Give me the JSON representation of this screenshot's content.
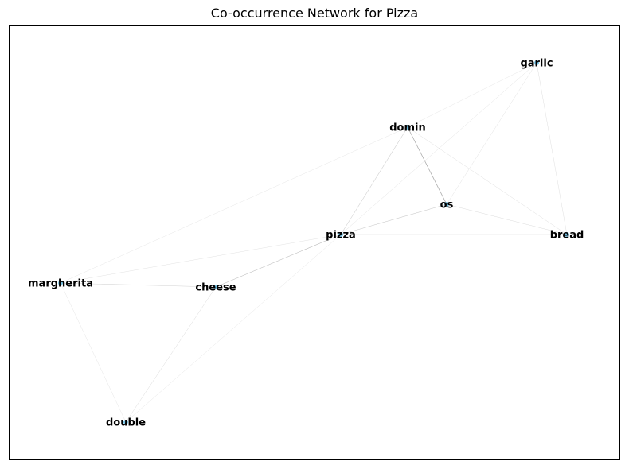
{
  "title": "Co-occurrence Network for Pizza",
  "colors": {
    "node": "#1f9fd6",
    "edge": "#9a9a9a",
    "frame": "#000000",
    "label": "#000000"
  },
  "graph": {
    "nodes": [
      {
        "id": "garlic",
        "label": "garlic"
      },
      {
        "id": "domin",
        "label": "domin"
      },
      {
        "id": "os",
        "label": "os"
      },
      {
        "id": "pizza",
        "label": "pizza"
      },
      {
        "id": "bread",
        "label": "bread"
      },
      {
        "id": "margherita",
        "label": "margherita"
      },
      {
        "id": "cheese",
        "label": "cheese"
      },
      {
        "id": "double",
        "label": "double"
      }
    ],
    "edges": [
      {
        "source": "domin",
        "target": "os",
        "weight": 0.6
      },
      {
        "source": "domin",
        "target": "pizza",
        "weight": 0.25
      },
      {
        "source": "domin",
        "target": "garlic",
        "weight": 0.08
      },
      {
        "source": "domin",
        "target": "bread",
        "weight": 0.12
      },
      {
        "source": "domin",
        "target": "margherita",
        "weight": 0.07
      },
      {
        "source": "garlic",
        "target": "os",
        "weight": 0.1
      },
      {
        "source": "garlic",
        "target": "bread",
        "weight": 0.12
      },
      {
        "source": "garlic",
        "target": "pizza",
        "weight": 0.1
      },
      {
        "source": "os",
        "target": "pizza",
        "weight": 0.3
      },
      {
        "source": "os",
        "target": "bread",
        "weight": 0.15
      },
      {
        "source": "pizza",
        "target": "bread",
        "weight": 0.15
      },
      {
        "source": "pizza",
        "target": "cheese",
        "weight": 0.4
      },
      {
        "source": "pizza",
        "target": "margherita",
        "weight": 0.1
      },
      {
        "source": "pizza",
        "target": "double",
        "weight": 0.08
      },
      {
        "source": "cheese",
        "target": "margherita",
        "weight": 0.2
      },
      {
        "source": "cheese",
        "target": "double",
        "weight": 0.15
      },
      {
        "source": "margherita",
        "target": "double",
        "weight": 0.08
      }
    ]
  }
}
